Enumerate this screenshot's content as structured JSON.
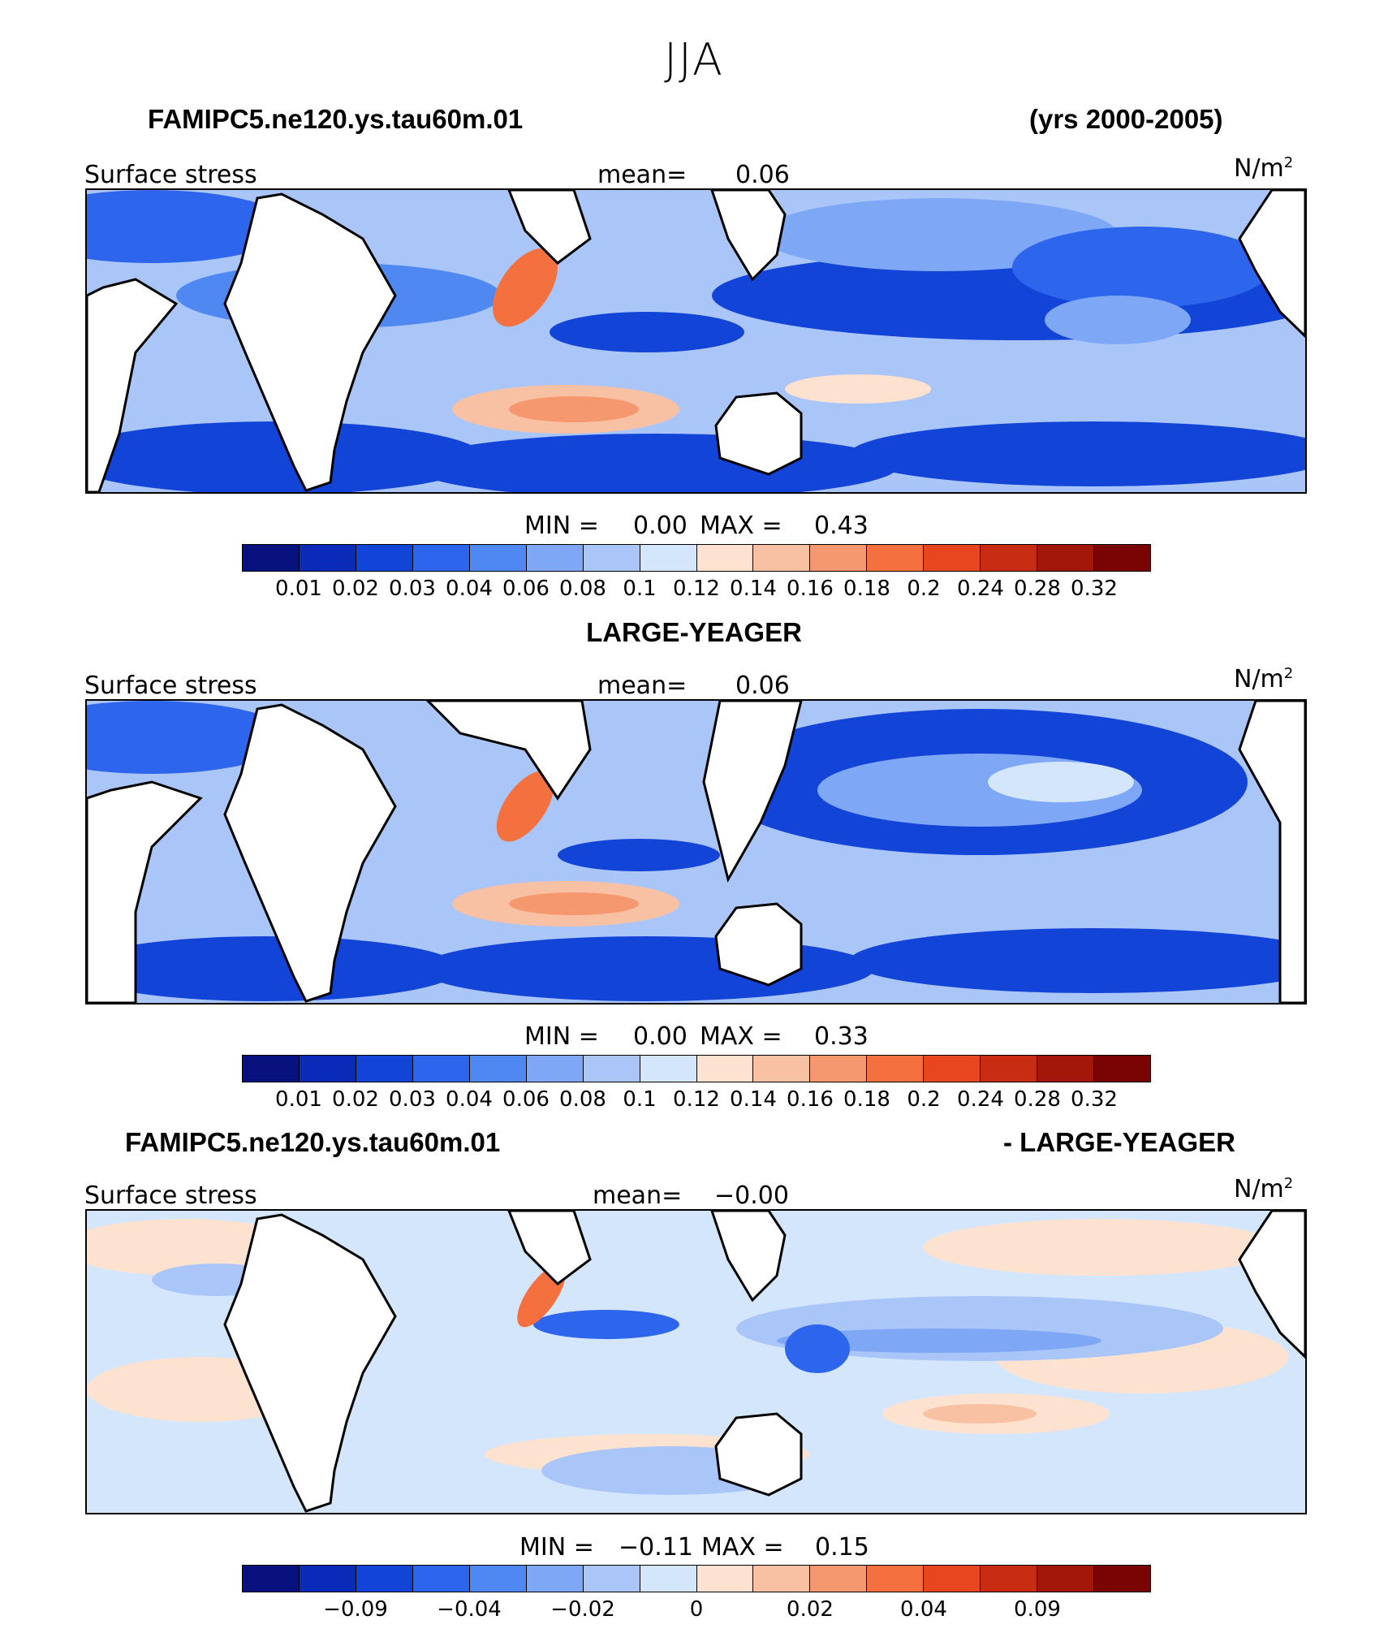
{
  "title": "JJA",
  "colors": [
    "#08127e",
    "#0a2ab8",
    "#1244d8",
    "#2d66ec",
    "#5088f2",
    "#7ea8f6",
    "#aac5f8",
    "#d4e6fb",
    "#fde3cf",
    "#f9c1a3",
    "#f6986f",
    "#f4713f",
    "#e8461e",
    "#c82c12",
    "#a3170b",
    "#7a0404"
  ],
  "panels": [
    {
      "header_left": "FAMIPC5.ne120.ys.tau60m.01",
      "header_right": "(yrs 2000-2005)",
      "var_label": "Surface stress",
      "mean_label": "mean=",
      "mean_value": "0.06",
      "units": "N/m",
      "units_exp": "2",
      "min_label": "MIN =",
      "min_value": "0.00",
      "max_label": "MAX =",
      "max_value": "0.43",
      "ticks": [
        "0.01",
        "0.02",
        "0.03",
        "0.04",
        "0.06",
        "0.08",
        "0.1",
        "0.12",
        "0.14",
        "0.16",
        "0.18",
        "0.2",
        "0.24",
        "0.28",
        "0.32"
      ]
    },
    {
      "header_center": "LARGE-YEAGER",
      "var_label": "Surface stress",
      "mean_label": "mean=",
      "mean_value": "0.06",
      "units": "N/m",
      "units_exp": "2",
      "min_label": "MIN =",
      "min_value": "0.00",
      "max_label": "MAX =",
      "max_value": "0.33",
      "ticks": [
        "0.01",
        "0.02",
        "0.03",
        "0.04",
        "0.06",
        "0.08",
        "0.1",
        "0.12",
        "0.14",
        "0.16",
        "0.18",
        "0.2",
        "0.24",
        "0.28",
        "0.32"
      ]
    },
    {
      "header_left": "FAMIPC5.ne120.ys.tau60m.01",
      "header_right": "- LARGE-YEAGER",
      "var_label": "Surface stress",
      "mean_label": "mean=",
      "mean_value": "−0.00",
      "units": "N/m",
      "units_exp": "2",
      "min_label": "MIN =",
      "min_value": "−0.11",
      "max_label": "MAX =",
      "max_value": "0.15",
      "ticks": [
        "−0.09",
        "−0.04",
        "−0.02",
        "0",
        "0.02",
        "0.04",
        "0.09"
      ]
    }
  ]
}
